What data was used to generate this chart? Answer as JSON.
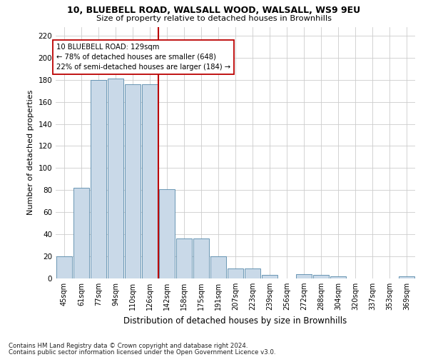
{
  "title1": "10, BLUEBELL ROAD, WALSALL WOOD, WALSALL, WS9 9EU",
  "title2": "Size of property relative to detached houses in Brownhills",
  "xlabel": "Distribution of detached houses by size in Brownhills",
  "ylabel": "Number of detached properties",
  "bar_labels": [
    "45sqm",
    "61sqm",
    "77sqm",
    "94sqm",
    "110sqm",
    "126sqm",
    "142sqm",
    "158sqm",
    "175sqm",
    "191sqm",
    "207sqm",
    "223sqm",
    "239sqm",
    "256sqm",
    "272sqm",
    "288sqm",
    "304sqm",
    "320sqm",
    "337sqm",
    "353sqm",
    "369sqm"
  ],
  "bar_values": [
    20,
    82,
    180,
    181,
    176,
    176,
    81,
    36,
    36,
    20,
    9,
    9,
    3,
    0,
    4,
    3,
    2,
    0,
    0,
    0,
    2
  ],
  "bar_color": "#c9d9e8",
  "bar_edge_color": "#5588aa",
  "vline_index": 5,
  "vline_color": "#bb0000",
  "annotation_text": "10 BLUEBELL ROAD: 129sqm\n← 78% of detached houses are smaller (648)\n22% of semi-detached houses are larger (184) →",
  "annotation_box_color": "#ffffff",
  "annotation_box_edge": "#bb0000",
  "grid_color": "#cccccc",
  "background_color": "#ffffff",
  "yticks": [
    0,
    20,
    40,
    60,
    80,
    100,
    120,
    140,
    160,
    180,
    200,
    220
  ],
  "ylim": [
    0,
    228
  ],
  "footer1": "Contains HM Land Registry data © Crown copyright and database right 2024.",
  "footer2": "Contains public sector information licensed under the Open Government Licence v3.0."
}
